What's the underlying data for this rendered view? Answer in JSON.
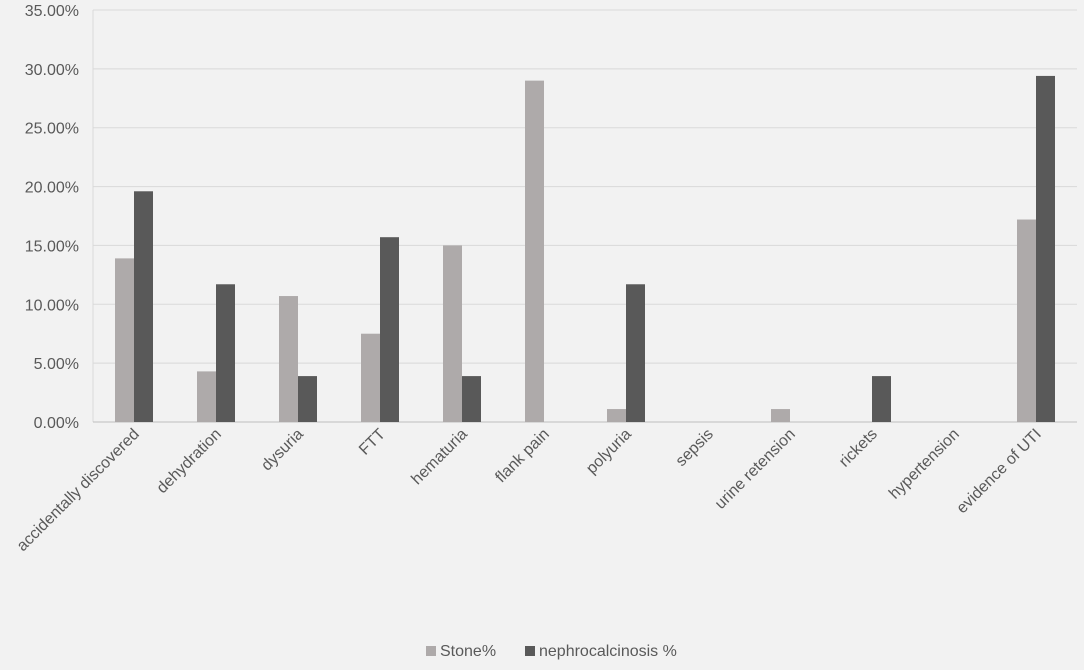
{
  "chart_data": {
    "type": "bar",
    "title": "",
    "xlabel": "",
    "ylabel": "",
    "ylim": [
      0,
      35
    ],
    "yticks": [
      "0.00%",
      "5.00%",
      "10.00%",
      "15.00%",
      "20.00%",
      "25.00%",
      "30.00%",
      "35.00%"
    ],
    "grid": true,
    "legend_position": "bottom-center",
    "categories": [
      "accidentally discovered",
      "dehydration",
      "dysuria",
      "FTT",
      "hematuria",
      "flank pain",
      "polyuria",
      "sepsis",
      "urine retension",
      "rickets",
      "hypertension",
      "evidence of UTI"
    ],
    "series": [
      {
        "name": "Stone%",
        "color": "#aeaaaa",
        "values": [
          13.9,
          4.3,
          10.7,
          7.5,
          15.0,
          29.0,
          1.1,
          0,
          1.1,
          0,
          0,
          17.2
        ]
      },
      {
        "name": "nephrocalcinosis %",
        "color": "#595959",
        "values": [
          19.6,
          11.7,
          3.9,
          15.7,
          3.9,
          0,
          11.7,
          0,
          0,
          3.9,
          0,
          29.4
        ]
      }
    ]
  }
}
